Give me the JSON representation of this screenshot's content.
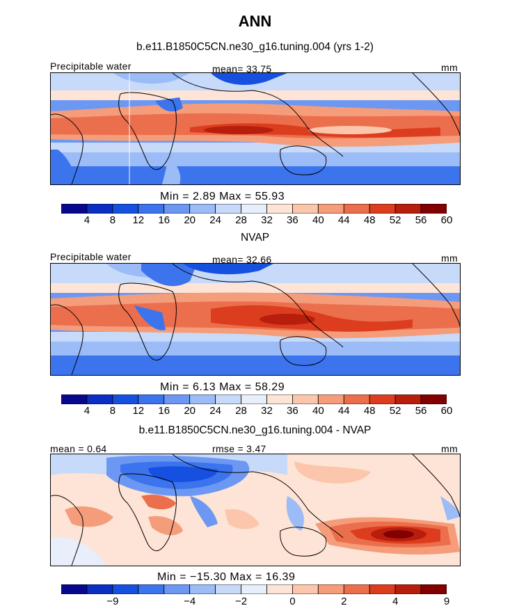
{
  "title": "ANN",
  "panels": [
    {
      "subtitle": "b.e11.B1850C5CN.ne30_g16.tuning.004 (yrs 1-2)",
      "left_label": "Precipitable water",
      "center_label": "mean=  33.75",
      "right_label": "mm",
      "stats": "Min =    2.89  Max =   55.93",
      "colorbar": {
        "colors": [
          "#08088f",
          "#0a2fc2",
          "#1550e0",
          "#3c74ee",
          "#6c98f3",
          "#9cbcf7",
          "#c8dafa",
          "#e8eefa",
          "#fde4d6",
          "#fbc6ab",
          "#f59d7b",
          "#ec6f4d",
          "#dc3d1e",
          "#b81e0c",
          "#820000"
        ],
        "ticks": [
          "4",
          "8",
          "12",
          "16",
          "20",
          "24",
          "28",
          "32",
          "36",
          "40",
          "44",
          "48",
          "52",
          "56",
          "60"
        ]
      }
    },
    {
      "subtitle": "NVAP",
      "left_label": "Precipitable water",
      "center_label": "mean=  32.66",
      "right_label": "mm",
      "stats": "Min =    6.13  Max =   58.29",
      "colorbar": {
        "colors": [
          "#08088f",
          "#0a2fc2",
          "#1550e0",
          "#3c74ee",
          "#6c98f3",
          "#9cbcf7",
          "#c8dafa",
          "#e8eefa",
          "#fde4d6",
          "#fbc6ab",
          "#f59d7b",
          "#ec6f4d",
          "#dc3d1e",
          "#b81e0c",
          "#820000"
        ],
        "ticks": [
          "4",
          "8",
          "12",
          "16",
          "20",
          "24",
          "28",
          "32",
          "36",
          "40",
          "44",
          "48",
          "52",
          "56",
          "60"
        ]
      }
    },
    {
      "subtitle": "b.e11.B1850C5CN.ne30_g16.tuning.004 - NVAP",
      "left_label": "mean =   0.64",
      "center_label": "rmse =    3.47",
      "right_label": "mm",
      "stats": "Min = −15.30  Max =   16.39",
      "colorbar": {
        "colors": [
          "#08088f",
          "#0a2fc2",
          "#1550e0",
          "#3c74ee",
          "#6c98f3",
          "#9cbcf7",
          "#c8dafa",
          "#e8eefa",
          "#fde4d6",
          "#fbc6ab",
          "#f59d7b",
          "#ec6f4d",
          "#dc3d1e",
          "#b81e0c",
          "#820000"
        ],
        "ticks": [
          "−9",
          "−4",
          "−2",
          "0",
          "2",
          "4",
          "9"
        ],
        "tick_positions": [
          2,
          5,
          7,
          9,
          11,
          13,
          15
        ]
      }
    }
  ]
}
